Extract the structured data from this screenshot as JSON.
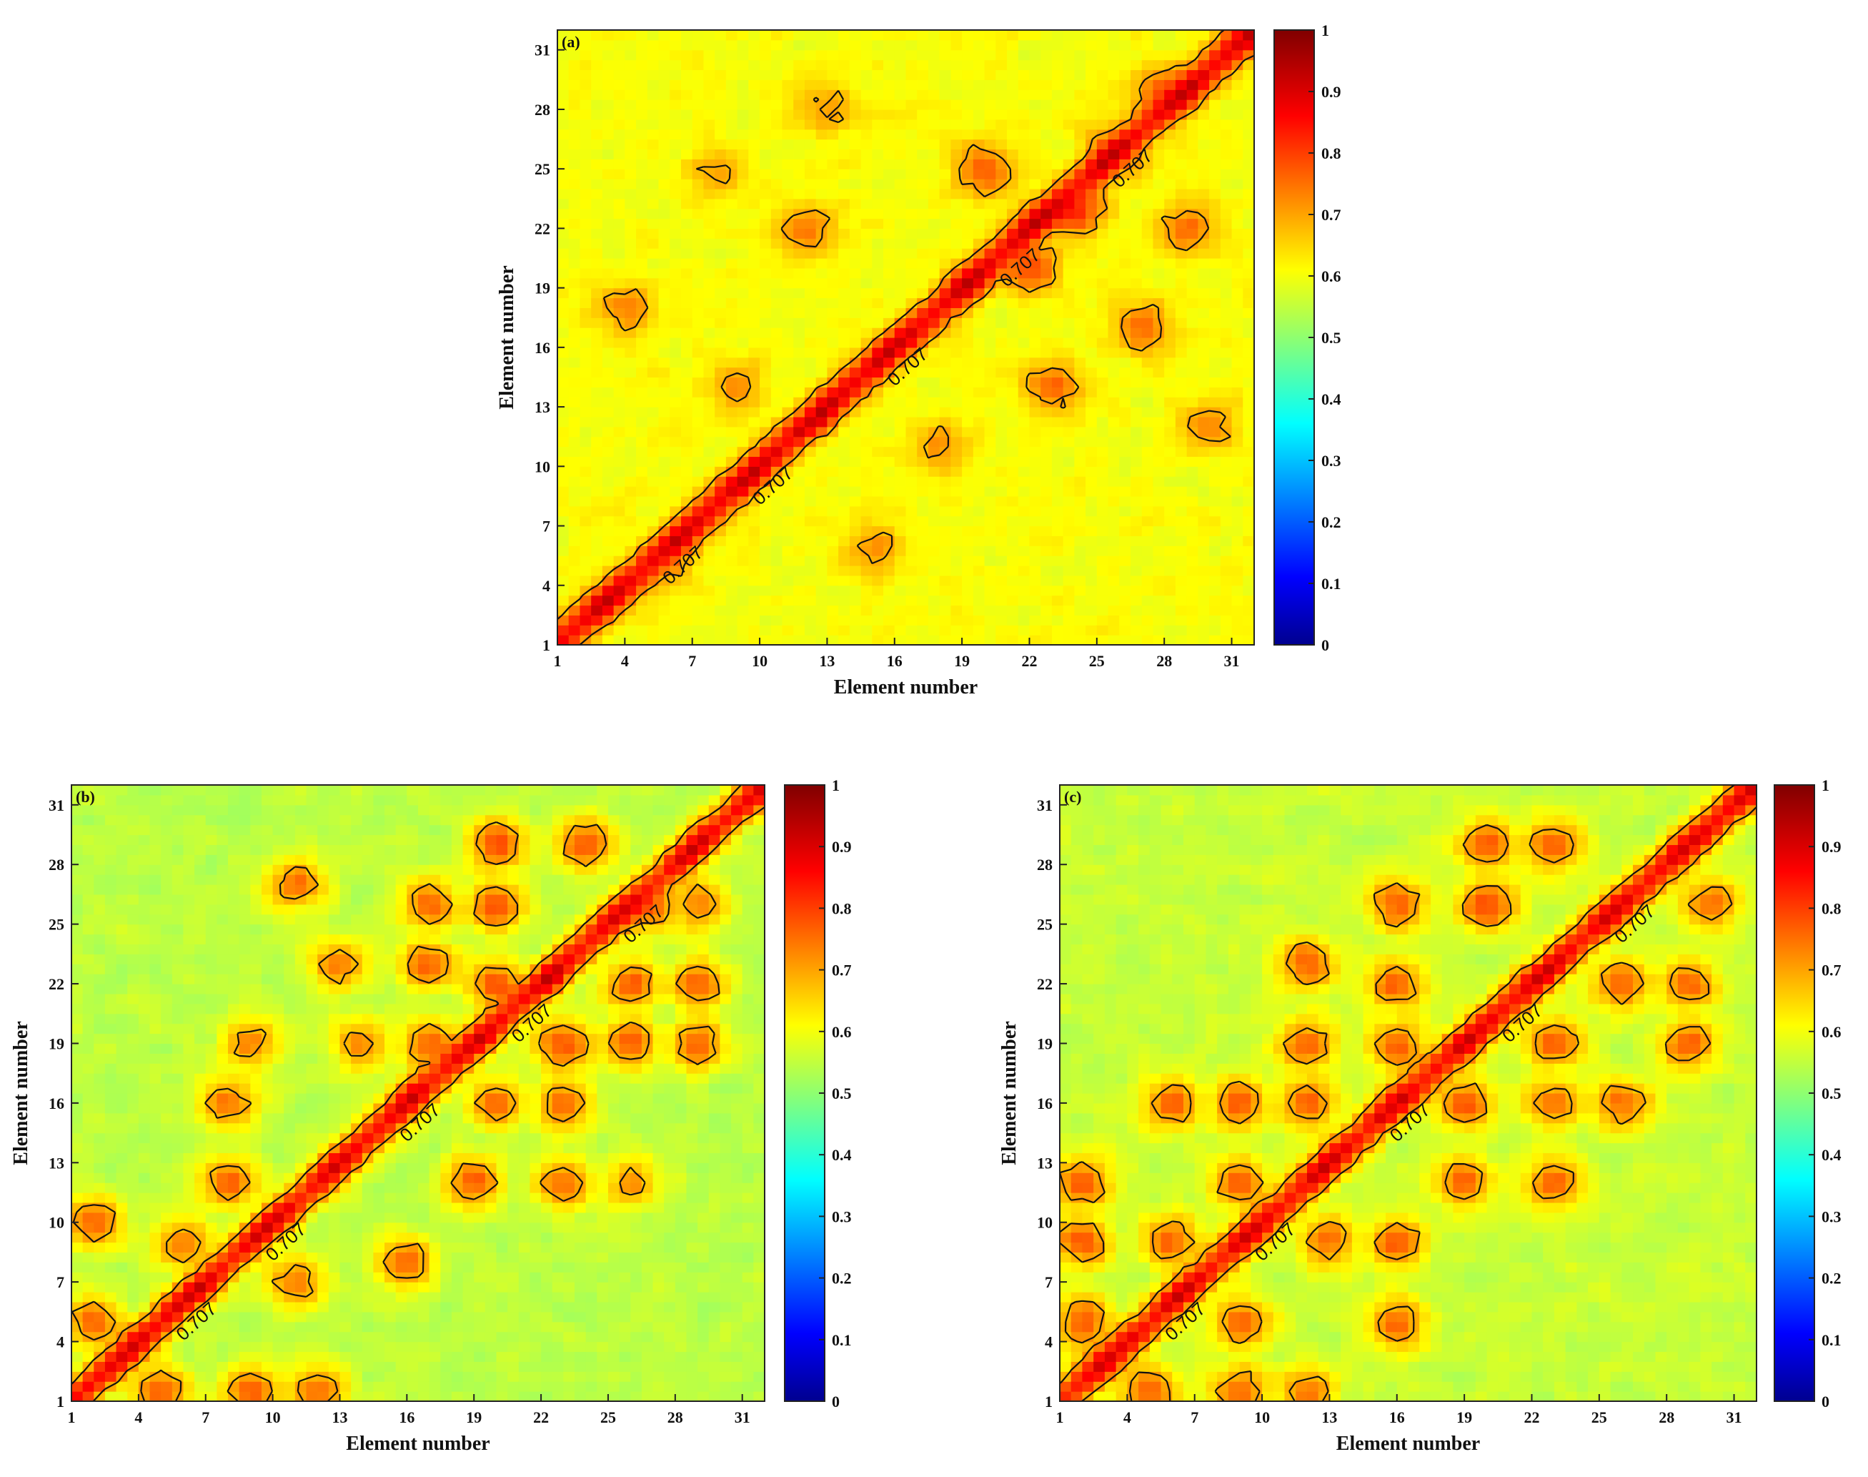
{
  "figure": {
    "colorbar_ticks": [
      "0",
      "0.1",
      "0.2",
      "0.3",
      "0.4",
      "0.5",
      "0.6",
      "0.7",
      "0.8",
      "0.9",
      "1"
    ]
  },
  "chart_data": [
    {
      "type": "heatmap",
      "panel": "(a)",
      "title": "",
      "xlabel": "Element number",
      "ylabel": "Element number",
      "ticks": [
        "1",
        "4",
        "7",
        "10",
        "13",
        "16",
        "19",
        "22",
        "25",
        "28",
        "31"
      ],
      "xlim": [
        1,
        32
      ],
      "ylim": [
        1,
        32
      ],
      "clim": [
        0,
        1
      ],
      "colormap": "jet",
      "contour_level": 0.707,
      "contour_label": "0.707",
      "background_level": 0.62,
      "diagonal_peak": 0.98,
      "features": [
        {
          "x": 4,
          "y": 18,
          "v": 0.76
        },
        {
          "x": 9,
          "y": 14,
          "v": 0.74
        },
        {
          "x": 12,
          "y": 22,
          "v": 0.78
        },
        {
          "x": 18,
          "y": 11,
          "v": 0.74
        },
        {
          "x": 20,
          "y": 25,
          "v": 0.8
        },
        {
          "x": 22,
          "y": 20,
          "v": 0.82
        },
        {
          "x": 24,
          "y": 23,
          "v": 0.86
        },
        {
          "x": 26,
          "y": 26,
          "v": 0.84
        },
        {
          "x": 27,
          "y": 17,
          "v": 0.78
        },
        {
          "x": 28,
          "y": 29,
          "v": 0.8
        },
        {
          "x": 30,
          "y": 12,
          "v": 0.74
        },
        {
          "x": 13,
          "y": 28,
          "v": 0.74
        },
        {
          "x": 6,
          "y": 5,
          "v": 0.72
        },
        {
          "x": 15,
          "y": 6,
          "v": 0.74
        },
        {
          "x": 29,
          "y": 22,
          "v": 0.78
        },
        {
          "x": 8,
          "y": 25,
          "v": 0.72
        },
        {
          "x": 23,
          "y": 14,
          "v": 0.78
        }
      ]
    },
    {
      "type": "heatmap",
      "panel": "(b)",
      "title": "",
      "xlabel": "Element number",
      "ylabel": "Element number",
      "ticks": [
        "1",
        "4",
        "7",
        "10",
        "13",
        "16",
        "19",
        "22",
        "25",
        "28",
        "31"
      ],
      "xlim": [
        1,
        32
      ],
      "ylim": [
        1,
        32
      ],
      "clim": [
        0,
        1
      ],
      "colormap": "jet",
      "contour_level": 0.707,
      "contour_label": "0.707",
      "background_level": 0.56,
      "diagonal_peak": 0.97,
      "features": [
        {
          "x": 2,
          "y": 10,
          "v": 0.8
        },
        {
          "x": 2,
          "y": 5,
          "v": 0.8
        },
        {
          "x": 5,
          "y": 1.5,
          "v": 0.8
        },
        {
          "x": 9,
          "y": 1.5,
          "v": 0.8
        },
        {
          "x": 12,
          "y": 1.5,
          "v": 0.78
        },
        {
          "x": 8,
          "y": 16,
          "v": 0.78
        },
        {
          "x": 8,
          "y": 12,
          "v": 0.8
        },
        {
          "x": 9,
          "y": 19,
          "v": 0.76
        },
        {
          "x": 11,
          "y": 27,
          "v": 0.78
        },
        {
          "x": 11,
          "y": 7,
          "v": 0.78
        },
        {
          "x": 13,
          "y": 23,
          "v": 0.78
        },
        {
          "x": 16,
          "y": 8,
          "v": 0.8
        },
        {
          "x": 17,
          "y": 19,
          "v": 0.8
        },
        {
          "x": 17,
          "y": 23,
          "v": 0.8
        },
        {
          "x": 17,
          "y": 26,
          "v": 0.8
        },
        {
          "x": 19,
          "y": 12,
          "v": 0.8
        },
        {
          "x": 20,
          "y": 16,
          "v": 0.78
        },
        {
          "x": 20,
          "y": 22,
          "v": 0.82
        },
        {
          "x": 20,
          "y": 26,
          "v": 0.82
        },
        {
          "x": 20,
          "y": 29,
          "v": 0.82
        },
        {
          "x": 23,
          "y": 19,
          "v": 0.82
        },
        {
          "x": 23,
          "y": 16,
          "v": 0.8
        },
        {
          "x": 23,
          "y": 12,
          "v": 0.78
        },
        {
          "x": 24,
          "y": 29,
          "v": 0.82
        },
        {
          "x": 26,
          "y": 19,
          "v": 0.8
        },
        {
          "x": 26,
          "y": 22,
          "v": 0.8
        },
        {
          "x": 27,
          "y": 26,
          "v": 0.8
        },
        {
          "x": 29,
          "y": 22,
          "v": 0.8
        },
        {
          "x": 29,
          "y": 19,
          "v": 0.8
        },
        {
          "x": 29,
          "y": 26,
          "v": 0.78
        },
        {
          "x": 26,
          "y": 12,
          "v": 0.74
        },
        {
          "x": 14,
          "y": 19,
          "v": 0.76
        },
        {
          "x": 6,
          "y": 9,
          "v": 0.78
        }
      ]
    },
    {
      "type": "heatmap",
      "panel": "(c)",
      "title": "",
      "xlabel": "Element number",
      "ylabel": "Element number",
      "ticks": [
        "1",
        "4",
        "7",
        "10",
        "13",
        "16",
        "19",
        "22",
        "25",
        "28",
        "31"
      ],
      "xlim": [
        1,
        32
      ],
      "ylim": [
        1,
        32
      ],
      "clim": [
        0,
        1
      ],
      "colormap": "jet",
      "contour_level": 0.707,
      "contour_label": "0.707",
      "background_level": 0.57,
      "diagonal_peak": 0.97,
      "features": [
        {
          "x": 2,
          "y": 12,
          "v": 0.8
        },
        {
          "x": 2,
          "y": 9,
          "v": 0.8
        },
        {
          "x": 2,
          "y": 5,
          "v": 0.8
        },
        {
          "x": 5,
          "y": 1.5,
          "v": 0.8
        },
        {
          "x": 9,
          "y": 1.5,
          "v": 0.8
        },
        {
          "x": 12,
          "y": 1.5,
          "v": 0.78
        },
        {
          "x": 6,
          "y": 16,
          "v": 0.8
        },
        {
          "x": 6,
          "y": 9,
          "v": 0.8
        },
        {
          "x": 9,
          "y": 5,
          "v": 0.8
        },
        {
          "x": 9,
          "y": 12,
          "v": 0.8
        },
        {
          "x": 9,
          "y": 16,
          "v": 0.8
        },
        {
          "x": 12,
          "y": 16,
          "v": 0.8
        },
        {
          "x": 12,
          "y": 19,
          "v": 0.8
        },
        {
          "x": 12,
          "y": 23,
          "v": 0.8
        },
        {
          "x": 16,
          "y": 9,
          "v": 0.8
        },
        {
          "x": 16,
          "y": 5,
          "v": 0.8
        },
        {
          "x": 16,
          "y": 19,
          "v": 0.8
        },
        {
          "x": 16,
          "y": 22,
          "v": 0.8
        },
        {
          "x": 16,
          "y": 26,
          "v": 0.8
        },
        {
          "x": 19,
          "y": 12,
          "v": 0.8
        },
        {
          "x": 19,
          "y": 16,
          "v": 0.8
        },
        {
          "x": 20,
          "y": 26,
          "v": 0.82
        },
        {
          "x": 20,
          "y": 29,
          "v": 0.82
        },
        {
          "x": 23,
          "y": 16,
          "v": 0.8
        },
        {
          "x": 23,
          "y": 12,
          "v": 0.8
        },
        {
          "x": 23,
          "y": 19,
          "v": 0.8
        },
        {
          "x": 23,
          "y": 29,
          "v": 0.8
        },
        {
          "x": 26,
          "y": 22,
          "v": 0.8
        },
        {
          "x": 26,
          "y": 16,
          "v": 0.78
        },
        {
          "x": 29,
          "y": 19,
          "v": 0.8
        },
        {
          "x": 29,
          "y": 22,
          "v": 0.8
        },
        {
          "x": 30,
          "y": 26,
          "v": 0.78
        },
        {
          "x": 13,
          "y": 9,
          "v": 0.78
        }
      ]
    }
  ]
}
